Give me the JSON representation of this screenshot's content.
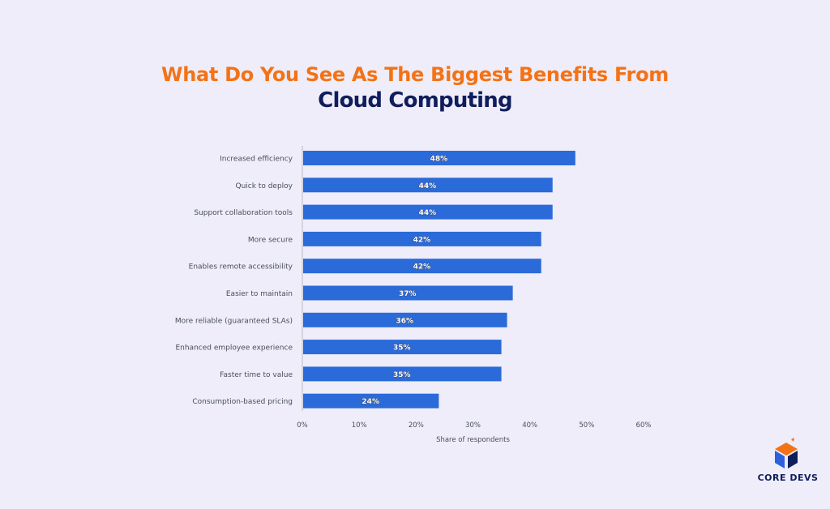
{
  "header": {
    "title_line1": "What Do You See As The Biggest Benefits From",
    "title_line2": "Cloud Computing"
  },
  "logo": {
    "text": "CORE DEVS",
    "icon": "cube-logo-icon",
    "colors": {
      "orange": "#f47216",
      "navy": "#101d5c",
      "blue": "#2b60de"
    }
  },
  "chart_data": {
    "type": "bar",
    "orientation": "horizontal",
    "categories": [
      "Increased efficiency",
      "Quick to deploy",
      "Support collaboration tools",
      "More secure",
      "Enables remote accessibility",
      "Easier to maintain",
      "More reliable (guaranteed SLAs)",
      "Enhanced employee experience",
      "Faster time to value",
      "Consumption-based pricing"
    ],
    "values": [
      48,
      44,
      44,
      42,
      42,
      37,
      36,
      35,
      35,
      24
    ],
    "value_labels": [
      "48%",
      "44%",
      "44%",
      "42%",
      "42%",
      "37%",
      "36%",
      "35%",
      "35%",
      "24%"
    ],
    "xlabel": "Share of respondents",
    "ylabel": "",
    "xlim": [
      0,
      60
    ],
    "xticks": [
      "0%",
      "10%",
      "20%",
      "30%",
      "40%",
      "50%",
      "60%"
    ],
    "bar_color": "#2b6ad9",
    "grid": false
  }
}
